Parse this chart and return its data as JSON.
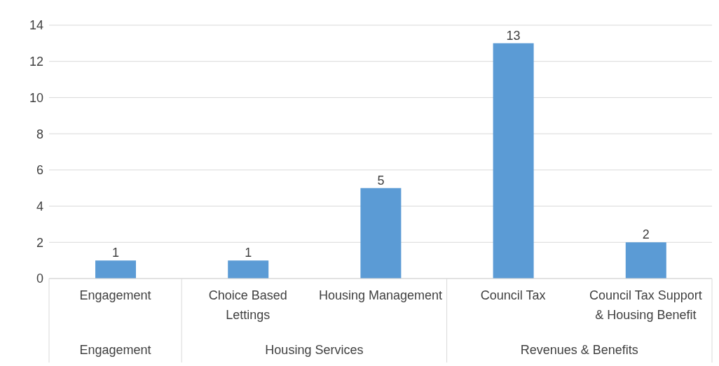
{
  "chart_data": {
    "type": "bar",
    "categories": [
      "Engagement",
      "Choice Based Lettings",
      "Housing Management",
      "Council Tax",
      "Council Tax Support & Housing Benefit"
    ],
    "values": [
      1,
      1,
      5,
      13,
      2
    ],
    "color": "#5b9bd5",
    "ylim": [
      0,
      14
    ],
    "yticks": [
      0,
      2,
      4,
      6,
      8,
      10,
      12,
      14
    ],
    "grid": "y",
    "data_labels": true,
    "annotations": [
      "Engagement",
      "Housing Services",
      "Revenues & Benefits"
    ]
  }
}
